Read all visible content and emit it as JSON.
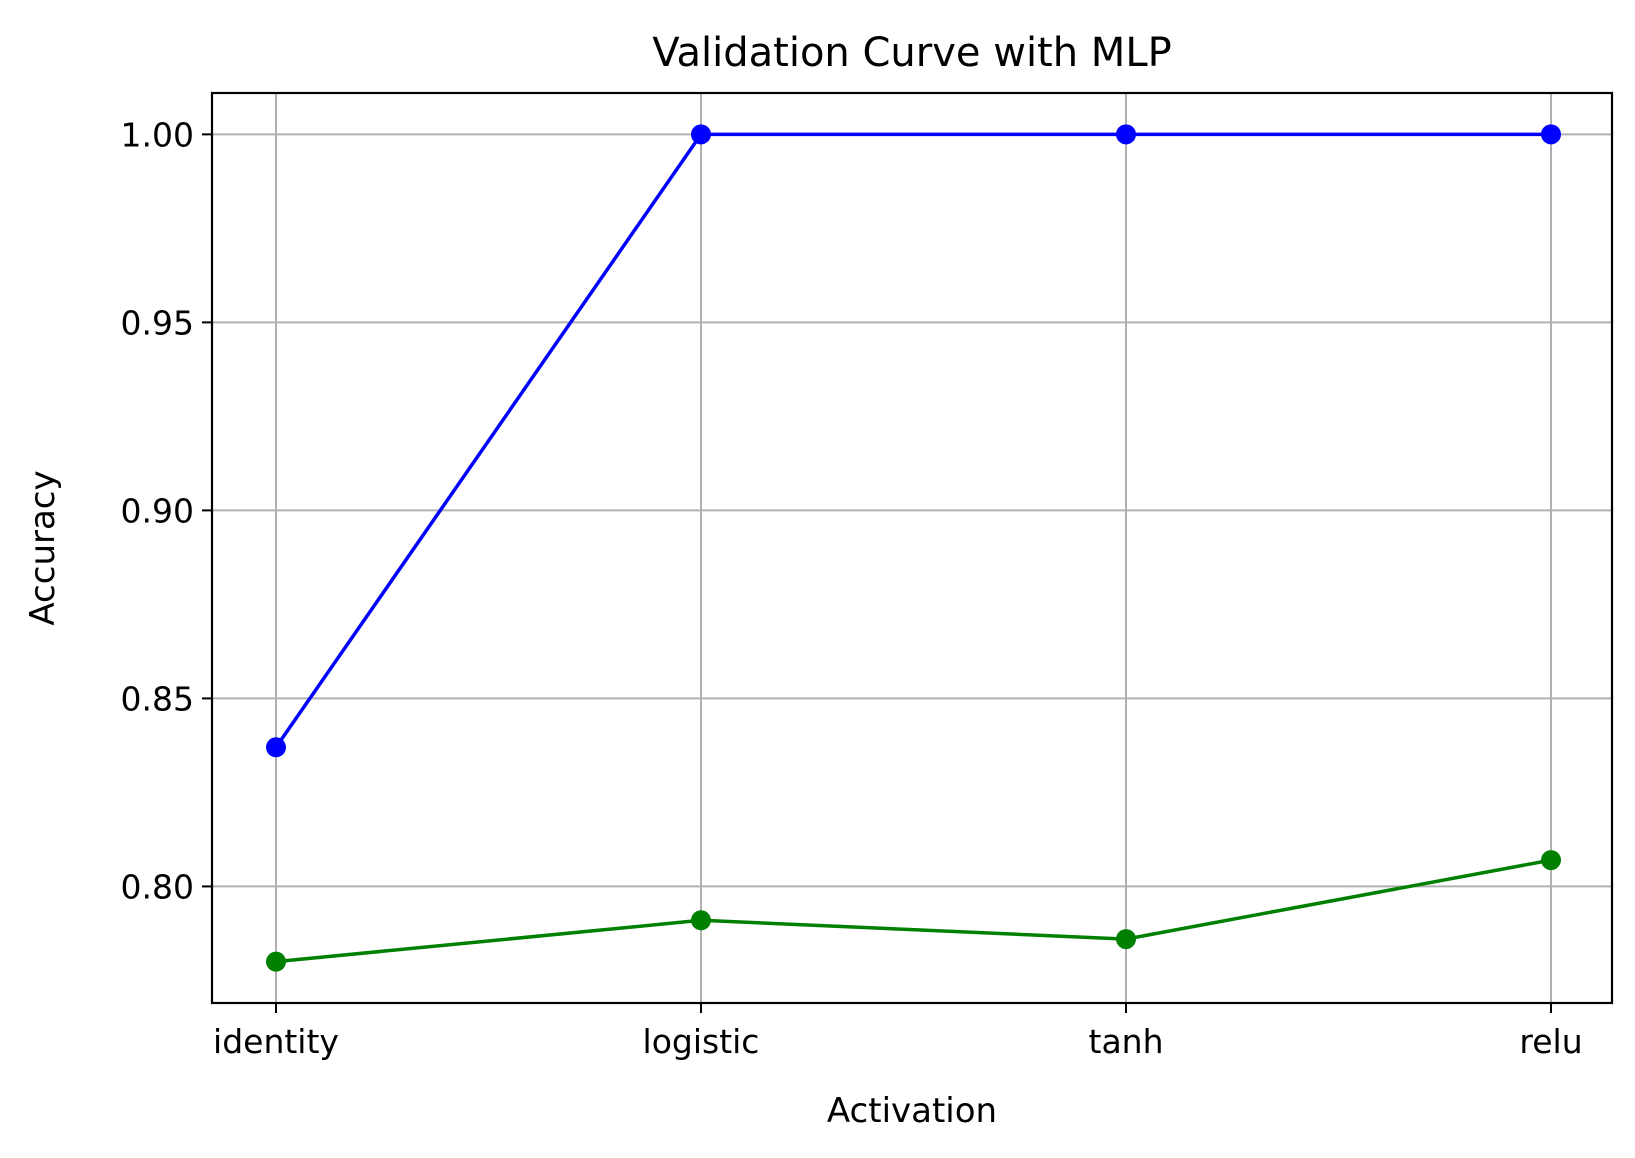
{
  "chart_data": {
    "type": "line",
    "title": "Validation Curve with MLP",
    "xlabel": "Activation",
    "ylabel": "Accuracy",
    "categories": [
      "identity",
      "logistic",
      "tanh",
      "relu"
    ],
    "ylim": [
      0.769,
      1.011
    ],
    "yticks": [
      0.8,
      0.85,
      0.9,
      0.95,
      1.0
    ],
    "ytick_labels": [
      "0.80",
      "0.85",
      "0.90",
      "0.95",
      "1.00"
    ],
    "grid": true,
    "legend": "none",
    "series": [
      {
        "values": [
          0.837,
          1.0,
          1.0,
          1.0
        ],
        "color": "#0000ff",
        "marker": "circle"
      },
      {
        "values": [
          0.78,
          0.791,
          0.786,
          0.807
        ],
        "color": "#008000",
        "marker": "circle"
      }
    ]
  }
}
